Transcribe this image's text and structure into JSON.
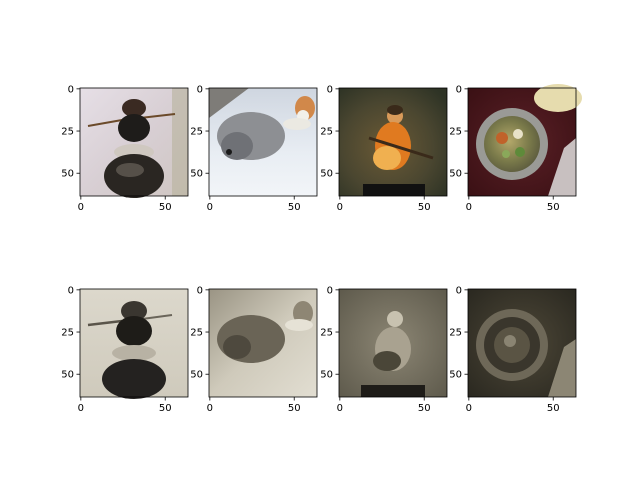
{
  "chart_data": {
    "type": "image-grid",
    "rows": 2,
    "cols": 4,
    "panels": [
      {
        "row": 0,
        "col": 0,
        "content": "beetle",
        "mode": "color",
        "xticks": [
          0,
          50
        ],
        "yticks": [
          0,
          25,
          50
        ],
        "xlim": [
          -0.5,
          63.5
        ],
        "ylim": [
          63.5,
          -0.5
        ]
      },
      {
        "row": 0,
        "col": 1,
        "content": "grey dog and small dog on snow",
        "mode": "color",
        "xticks": [
          0,
          50
        ],
        "yticks": [
          0,
          25,
          50
        ],
        "xlim": [
          -0.5,
          63.5
        ],
        "ylim": [
          63.5,
          -0.5
        ]
      },
      {
        "row": 0,
        "col": 2,
        "content": "guitar player on stage",
        "mode": "color",
        "xticks": [
          0,
          50
        ],
        "yticks": [
          0,
          25,
          50
        ],
        "xlim": [
          -0.5,
          63.5
        ],
        "ylim": [
          63.5,
          -0.5
        ]
      },
      {
        "row": 0,
        "col": 3,
        "content": "bowl of soup",
        "mode": "color",
        "xticks": [
          0,
          50
        ],
        "yticks": [
          0,
          25,
          50
        ],
        "xlim": [
          -0.5,
          63.5
        ],
        "ylim": [
          63.5,
          -0.5
        ]
      },
      {
        "row": 1,
        "col": 0,
        "content": "beetle",
        "mode": "sepia-reconstruction",
        "xticks": [
          0,
          50
        ],
        "yticks": [
          0,
          25,
          50
        ],
        "xlim": [
          -0.5,
          63.5
        ],
        "ylim": [
          63.5,
          -0.5
        ]
      },
      {
        "row": 1,
        "col": 1,
        "content": "grey dog and small dog on snow",
        "mode": "sepia-reconstruction",
        "xticks": [
          0,
          50
        ],
        "yticks": [
          0,
          25,
          50
        ],
        "xlim": [
          -0.5,
          63.5
        ],
        "ylim": [
          63.5,
          -0.5
        ]
      },
      {
        "row": 1,
        "col": 2,
        "content": "guitar player on stage",
        "mode": "sepia-reconstruction",
        "xticks": [
          0,
          50
        ],
        "yticks": [
          0,
          25,
          50
        ],
        "xlim": [
          -0.5,
          63.5
        ],
        "ylim": [
          63.5,
          -0.5
        ]
      },
      {
        "row": 1,
        "col": 3,
        "content": "bowl of soup",
        "mode": "sepia-reconstruction",
        "xticks": [
          0,
          50
        ],
        "yticks": [
          0,
          25,
          50
        ],
        "xlim": [
          -0.5,
          63.5
        ],
        "ylim": [
          63.5,
          -0.5
        ]
      }
    ]
  }
}
